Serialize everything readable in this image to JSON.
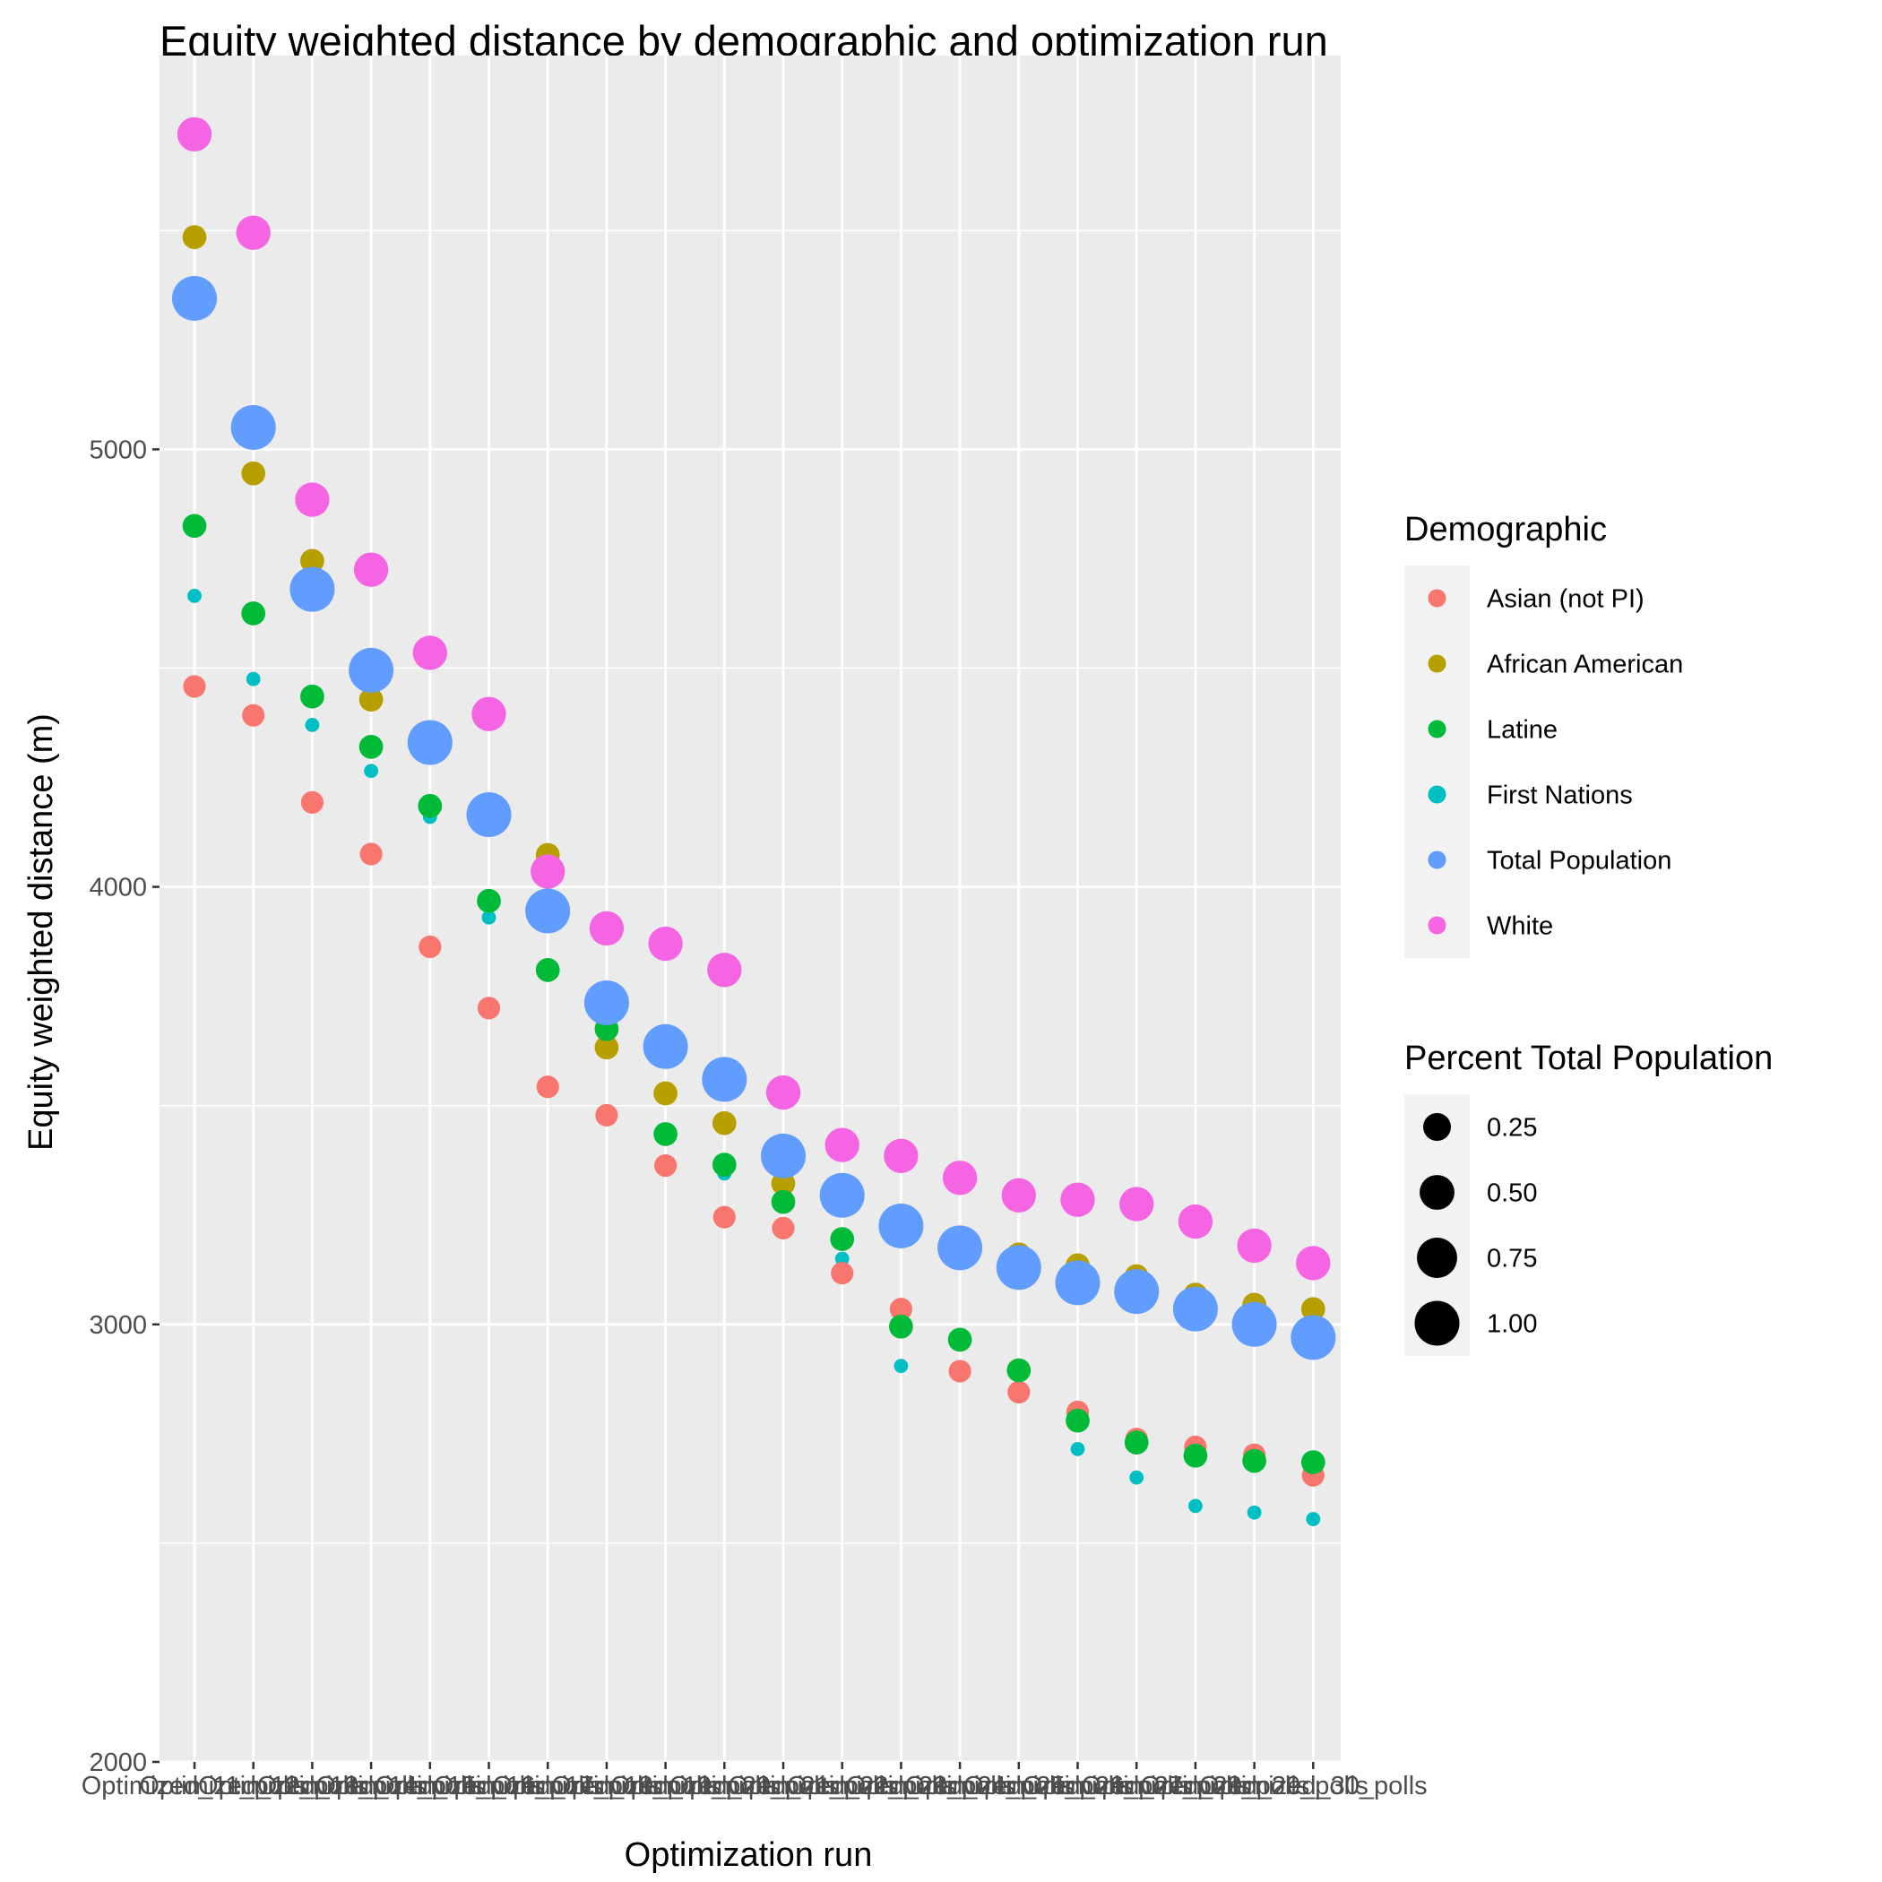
{
  "chart_data": {
    "type": "scatter",
    "title": "Equity weighted distance by demographic and optimization run",
    "xlabel": "Optimization run",
    "ylabel": "Equity weighted distance (m)",
    "ylim": [
      2000,
      5900
    ],
    "yticks": [
      2000,
      3000,
      4000,
      5000
    ],
    "grid": true,
    "legend_position": "right",
    "categories": [
      "Optimized_11_polls",
      "Optimized_12_polls",
      "Optimized_13_polls",
      "Optimized_14_polls",
      "Optimized_15_polls",
      "Optimized_16_polls",
      "Optimized_17_polls",
      "Optimized_18_polls",
      "Optimized_19_polls",
      "Optimized_20_polls",
      "Optimized_21_polls",
      "Optimized_22_polls",
      "Optimized_23_polls",
      "Optimized_24_polls",
      "Optimized_25_polls",
      "Optimized_26_polls",
      "Optimized_27_polls",
      "Optimized_28_polls",
      "Optimized_29_polls",
      "Optimized_30_polls"
    ],
    "series": [
      {
        "name": "Asian (not PI)",
        "color": "#F8766D",
        "size": 0.12,
        "values": [
          4458,
          4392,
          4193,
          4075,
          3863,
          3723,
          3543,
          3478,
          3363,
          3245,
          3220,
          3117,
          3035,
          2893,
          2845,
          2800,
          2738,
          2720,
          2702,
          2655
        ]
      },
      {
        "name": "African American",
        "color": "#B79F00",
        "size": 0.15,
        "values": [
          5485,
          4945,
          4745,
          4428,
          4330,
          4168,
          4073,
          3633,
          3528,
          3460,
          3322,
          3275,
          3222,
          3195,
          3160,
          3135,
          3110,
          3068,
          3045,
          3035
        ]
      },
      {
        "name": "Latine",
        "color": "#00BA38",
        "size": 0.15,
        "values": [
          4825,
          4625,
          4435,
          4320,
          4185,
          3968,
          3810,
          3675,
          3435,
          3365,
          3280,
          3195,
          2995,
          2965,
          2895,
          2780,
          2730,
          2700,
          2688,
          2685
        ]
      },
      {
        "name": "First Nations",
        "color": "#00BFC4",
        "size": 0.01,
        "values": [
          4665,
          4475,
          4370,
          4265,
          4160,
          3930,
          3800,
          3660,
          3445,
          3345,
          3225,
          3150,
          2905,
          2885,
          2840,
          2715,
          2650,
          2585,
          2570,
          2555
        ]
      },
      {
        "name": "Total Population",
        "color": "#619CFF",
        "size": 1.0,
        "values": [
          5345,
          5050,
          4680,
          4495,
          4330,
          4165,
          3945,
          3735,
          3635,
          3560,
          3385,
          3295,
          3225,
          3175,
          3130,
          3095,
          3075,
          3035,
          3000,
          2970
        ]
      },
      {
        "name": "White",
        "color": "#F564E3",
        "size": 0.48,
        "values": [
          5720,
          5495,
          4885,
          4725,
          4535,
          4395,
          4035,
          3905,
          3870,
          3810,
          3530,
          3410,
          3385,
          3335,
          3295,
          3285,
          3275,
          3235,
          3180,
          3140
        ]
      }
    ],
    "legend": {
      "color_title": "Demographic",
      "color_entries": [
        "Asian (not PI)",
        "African American",
        "Latine",
        "First Nations",
        "Total Population",
        "White"
      ],
      "size_title": "Percent Total Population",
      "size_entries": [
        "0.25",
        "0.50",
        "0.75",
        "1.00"
      ],
      "size_values": [
        0.25,
        0.5,
        0.75,
        1.0
      ]
    },
    "colors": {
      "panel_background": "#EBEBEB",
      "grid": "#FFFFFF",
      "legend_key_background": "#F2F2F2"
    }
  }
}
